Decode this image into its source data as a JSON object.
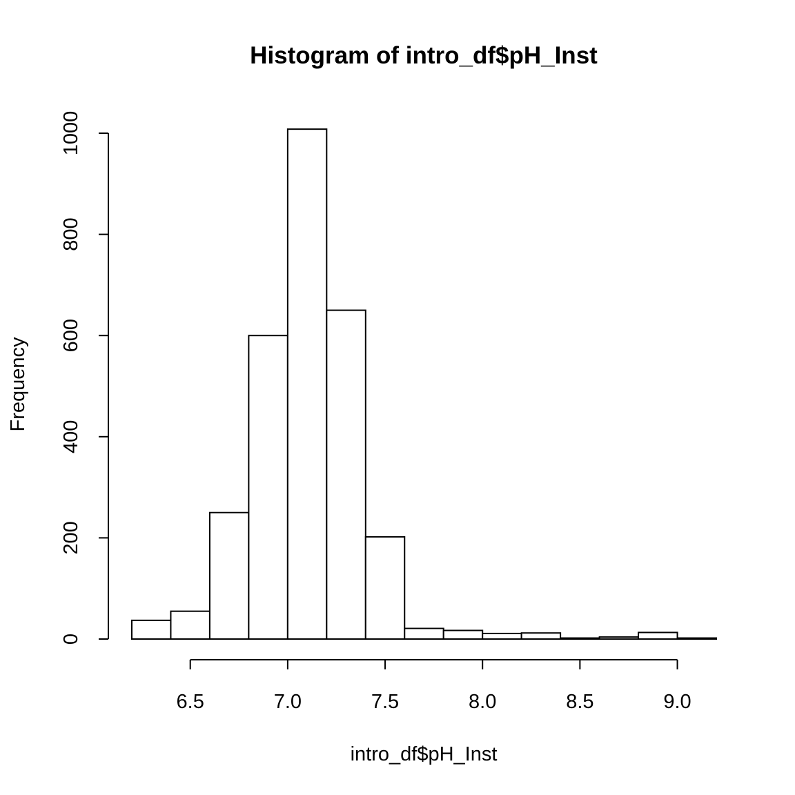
{
  "chart_data": {
    "type": "bar",
    "title": "Histogram of intro_df$pH_Inst",
    "xlabel": "intro_df$pH_Inst",
    "ylabel": "Frequency",
    "bins": [
      {
        "from": 6.2,
        "to": 6.4,
        "count": 37
      },
      {
        "from": 6.4,
        "to": 6.6,
        "count": 55
      },
      {
        "from": 6.6,
        "to": 6.8,
        "count": 250
      },
      {
        "from": 6.8,
        "to": 7.0,
        "count": 600
      },
      {
        "from": 7.0,
        "to": 7.2,
        "count": 1008
      },
      {
        "from": 7.2,
        "to": 7.4,
        "count": 650
      },
      {
        "from": 7.4,
        "to": 7.6,
        "count": 202
      },
      {
        "from": 7.6,
        "to": 7.8,
        "count": 21
      },
      {
        "from": 7.8,
        "to": 8.0,
        "count": 17
      },
      {
        "from": 8.0,
        "to": 8.2,
        "count": 11
      },
      {
        "from": 8.2,
        "to": 8.4,
        "count": 12
      },
      {
        "from": 8.4,
        "to": 8.6,
        "count": 2
      },
      {
        "from": 8.6,
        "to": 8.8,
        "count": 4
      },
      {
        "from": 8.8,
        "to": 9.0,
        "count": 13
      },
      {
        "from": 9.0,
        "to": 9.2,
        "count": 2
      }
    ],
    "xlim": [
      6.2,
      9.2
    ],
    "ylim": [
      0,
      1008
    ],
    "x_ticks": [
      6.5,
      7.0,
      7.5,
      8.0,
      8.5,
      9.0
    ],
    "x_tick_labels": [
      "6.5",
      "7.0",
      "7.5",
      "8.0",
      "8.5",
      "9.0"
    ],
    "y_ticks": [
      0,
      200,
      400,
      600,
      800,
      1000
    ],
    "y_tick_labels": [
      "0",
      "200",
      "400",
      "600",
      "800",
      "1000"
    ],
    "grid": false,
    "colors": {
      "bar_fill": "#ffffff",
      "bar_stroke": "#000000",
      "background": "#ffffff"
    }
  }
}
